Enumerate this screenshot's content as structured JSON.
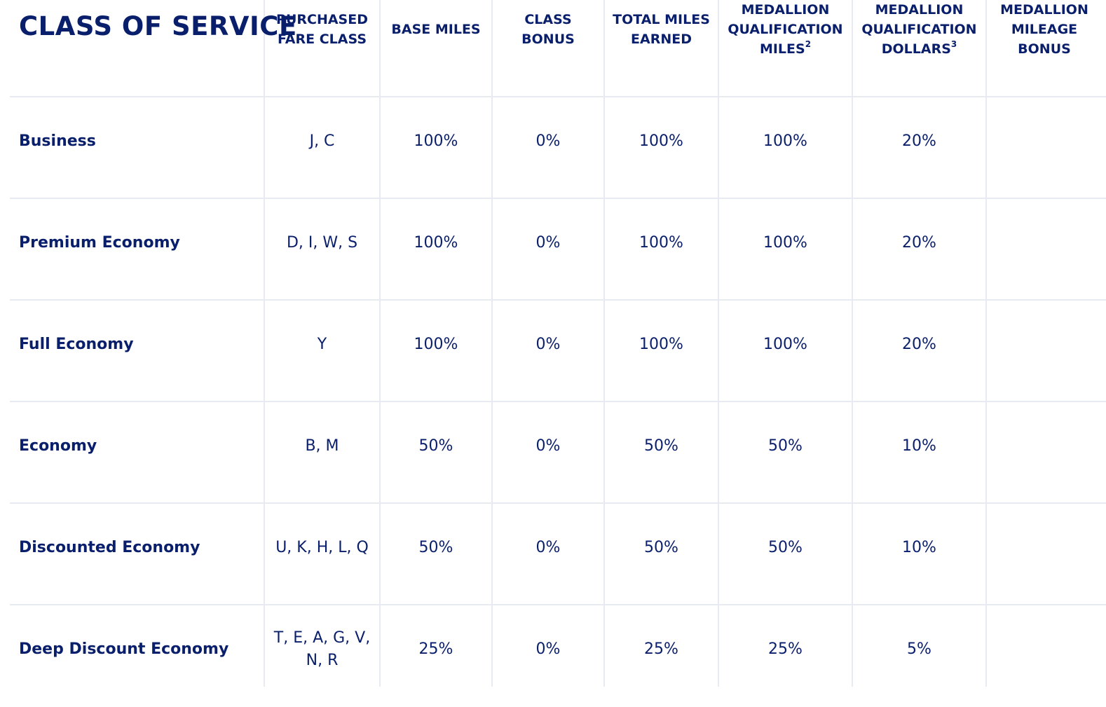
{
  "title": "CLASS OF SERVICE",
  "columns": [
    {
      "label": "PURCHASED\nFARE CLASS",
      "sup": ""
    },
    {
      "label": "BASE MILES",
      "sup": ""
    },
    {
      "label": "CLASS\nBONUS",
      "sup": ""
    },
    {
      "label": "TOTAL MILES\nEARNED",
      "sup": ""
    },
    {
      "label": "MEDALLION\nQUALIFICATION\nMILES",
      "sup": "2"
    },
    {
      "label": "MEDALLION\nQUALIFICATION\nDOLLARS",
      "sup": "3"
    },
    {
      "label": "MEDALLION\nMILEAGE\nBONUS",
      "sup": ""
    }
  ],
  "rows": [
    {
      "class": "Business",
      "fare": "J, C",
      "base": "100%",
      "bonus": "0%",
      "total": "100%",
      "mqm": "100%",
      "mqd": "20%",
      "mileage_bonus": ""
    },
    {
      "class": "Premium Economy",
      "fare": "D, I, W, S",
      "base": "100%",
      "bonus": "0%",
      "total": "100%",
      "mqm": "100%",
      "mqd": "20%",
      "mileage_bonus": ""
    },
    {
      "class": "Full Economy",
      "fare": "Y",
      "base": "100%",
      "bonus": "0%",
      "total": "100%",
      "mqm": "100%",
      "mqd": "20%",
      "mileage_bonus": ""
    },
    {
      "class": "Economy",
      "fare": "B, M",
      "base": "50%",
      "bonus": "0%",
      "total": "50%",
      "mqm": "50%",
      "mqd": "10%",
      "mileage_bonus": ""
    },
    {
      "class": "Discounted Economy",
      "fare": "U, K, H, L, Q",
      "base": "50%",
      "bonus": "0%",
      "total": "50%",
      "mqm": "50%",
      "mqd": "10%",
      "mileage_bonus": ""
    },
    {
      "class": "Deep Discount Economy",
      "fare": "T, E, A, G, V,\nN, R",
      "base": "25%",
      "bonus": "0%",
      "total": "25%",
      "mqm": "25%",
      "mqd": "5%",
      "mileage_bonus": ""
    }
  ]
}
